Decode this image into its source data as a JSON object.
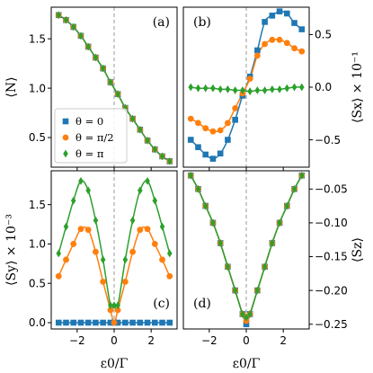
{
  "colors": {
    "blue": "#1f77b4",
    "orange": "#ff7f0e",
    "green": "#2ca02c",
    "zero_line": "#999999"
  },
  "legend": [
    {
      "label": "θ = 0",
      "color": "#1f77b4",
      "marker": "square"
    },
    {
      "label": "θ = π/2",
      "color": "#ff7f0e",
      "marker": "circle"
    },
    {
      "label": "θ = π",
      "color": "#2ca02c",
      "marker": "diamond"
    }
  ],
  "chart_data": [
    {
      "panel": "(a)",
      "type": "line",
      "ylabel": "⟨N⟩",
      "xlabel": "",
      "xlim": [
        -3.4,
        3.4
      ],
      "ylim": [
        0.2,
        1.82
      ],
      "yticks": [
        0.5,
        1.0,
        1.5
      ],
      "ytick_labels": [
        "0.5",
        "1.0",
        "1.5"
      ],
      "y_side": "left",
      "xticks": [
        -2,
        0,
        2
      ],
      "xtick_labels": [],
      "x": [
        -3.0,
        -2.6,
        -2.2,
        -1.8,
        -1.4,
        -1.0,
        -0.6,
        -0.2,
        0.2,
        0.6,
        1.0,
        1.4,
        1.8,
        2.2,
        2.6,
        3.0
      ],
      "series": [
        {
          "name": "θ = 0",
          "color": "#1f77b4",
          "marker": "square",
          "values": [
            1.74,
            1.69,
            1.62,
            1.53,
            1.42,
            1.31,
            1.2,
            1.06,
            0.94,
            0.8,
            0.69,
            0.58,
            0.47,
            0.38,
            0.31,
            0.26
          ]
        },
        {
          "name": "θ = π/2",
          "color": "#ff7f0e",
          "marker": "circle",
          "values": [
            1.74,
            1.69,
            1.62,
            1.53,
            1.42,
            1.31,
            1.2,
            1.06,
            0.94,
            0.8,
            0.69,
            0.58,
            0.47,
            0.38,
            0.31,
            0.26
          ]
        },
        {
          "name": "θ = π",
          "color": "#2ca02c",
          "marker": "diamond",
          "values": [
            1.74,
            1.69,
            1.62,
            1.53,
            1.42,
            1.31,
            1.2,
            1.06,
            0.94,
            0.8,
            0.69,
            0.58,
            0.47,
            0.38,
            0.31,
            0.26
          ]
        }
      ]
    },
    {
      "panel": "(b)",
      "type": "line",
      "ylabel": "⟨Sx⟩ × 10⁻¹",
      "xlabel": "",
      "xlim": [
        -3.4,
        3.4
      ],
      "ylim": [
        -0.76,
        0.76
      ],
      "yticks": [
        -0.5,
        0.0,
        0.5
      ],
      "ytick_labels": [
        "−0.5",
        "0.0",
        "0.5"
      ],
      "y_side": "right",
      "xticks": [
        -2,
        0,
        2
      ],
      "xtick_labels": [],
      "x": [
        -3.0,
        -2.6,
        -2.2,
        -1.8,
        -1.4,
        -1.0,
        -0.6,
        -0.2,
        0.2,
        0.6,
        1.0,
        1.4,
        1.8,
        2.2,
        2.6,
        3.0
      ],
      "series": [
        {
          "name": "θ = 0",
          "color": "#1f77b4",
          "marker": "square",
          "values": [
            -0.5,
            -0.57,
            -0.64,
            -0.68,
            -0.63,
            -0.5,
            -0.31,
            -0.08,
            0.1,
            0.35,
            0.62,
            0.68,
            0.72,
            0.7,
            0.61,
            0.55
          ]
        },
        {
          "name": "θ = π/2",
          "color": "#ff7f0e",
          "marker": "circle",
          "values": [
            -0.3,
            -0.34,
            -0.39,
            -0.42,
            -0.41,
            -0.34,
            -0.2,
            -0.06,
            0.08,
            0.3,
            0.41,
            0.45,
            0.45,
            0.42,
            0.37,
            0.34
          ]
        },
        {
          "name": "θ = π",
          "color": "#2ca02c",
          "marker": "diamond",
          "values": [
            0.0,
            -0.01,
            -0.01,
            -0.01,
            -0.02,
            -0.02,
            -0.03,
            -0.03,
            -0.04,
            -0.03,
            -0.03,
            -0.02,
            -0.02,
            -0.01,
            0.0,
            0.0
          ]
        }
      ]
    },
    {
      "panel": "(c)",
      "type": "line",
      "ylabel": "⟨Sy⟩ × 10⁻³",
      "xlabel": "ε0/Γ",
      "xlim": [
        -3.4,
        3.4
      ],
      "ylim": [
        -0.08,
        1.93
      ],
      "yticks": [
        0.0,
        0.5,
        1.0,
        1.5
      ],
      "ytick_labels": [
        "0.0",
        "0.5",
        "1.0",
        "1.5"
      ],
      "y_side": "left",
      "xticks": [
        -2,
        0,
        2
      ],
      "xtick_labels": [
        "−2",
        "0",
        "2"
      ],
      "x": [
        -3.0,
        -2.6,
        -2.2,
        -1.8,
        -1.4,
        -1.0,
        -0.6,
        -0.2,
        0.0,
        0.2,
        0.6,
        1.0,
        1.4,
        1.8,
        2.2,
        2.6,
        3.0
      ],
      "series": [
        {
          "name": "θ = 0",
          "color": "#1f77b4",
          "marker": "square",
          "values": [
            0,
            0,
            0,
            0,
            0,
            0,
            0,
            0,
            0,
            0,
            0,
            0,
            0,
            0,
            0,
            0,
            0
          ]
        },
        {
          "name": "θ = π/2",
          "color": "#ff7f0e",
          "marker": "circle",
          "values": [
            0.59,
            0.8,
            1.0,
            1.19,
            1.18,
            0.9,
            0.52,
            0.16,
            0.0,
            0.16,
            0.52,
            0.9,
            1.18,
            1.19,
            1.0,
            0.8,
            0.59
          ]
        },
        {
          "name": "θ = π",
          "color": "#2ca02c",
          "marker": "diamond",
          "values": [
            0.88,
            1.22,
            1.55,
            1.8,
            1.68,
            1.3,
            0.8,
            0.22,
            0.22,
            0.22,
            0.8,
            1.3,
            1.68,
            1.8,
            1.55,
            1.22,
            0.88
          ]
        }
      ]
    },
    {
      "panel": "(d)",
      "type": "line",
      "ylabel": "⟨Sz⟩",
      "xlabel": "ε0/Γ",
      "xlim": [
        -3.4,
        3.4
      ],
      "ylim": [
        -0.257,
        -0.023
      ],
      "yticks": [
        -0.25,
        -0.2,
        -0.15,
        -0.1,
        -0.05
      ],
      "ytick_labels": [
        "−0.25",
        "−0.20",
        "−0.15",
        "−0.10",
        "−0.05"
      ],
      "y_side": "right",
      "xticks": [
        -2,
        0,
        2
      ],
      "xtick_labels": [
        "−2",
        "0",
        "2"
      ],
      "x": [
        -3.0,
        -2.6,
        -2.2,
        -1.8,
        -1.4,
        -1.0,
        -0.6,
        -0.2,
        0.0,
        0.2,
        0.6,
        1.0,
        1.4,
        1.8,
        2.2,
        2.6,
        3.0
      ],
      "series": [
        {
          "name": "θ = 0",
          "color": "#1f77b4",
          "marker": "square",
          "values": [
            -0.03,
            -0.05,
            -0.075,
            -0.1,
            -0.13,
            -0.165,
            -0.2,
            -0.235,
            -0.25,
            -0.235,
            -0.2,
            -0.165,
            -0.13,
            -0.1,
            -0.075,
            -0.05,
            -0.03
          ]
        },
        {
          "name": "θ = π/2",
          "color": "#ff7f0e",
          "marker": "circle",
          "values": [
            -0.03,
            -0.05,
            -0.075,
            -0.1,
            -0.13,
            -0.165,
            -0.2,
            -0.235,
            -0.245,
            -0.235,
            -0.2,
            -0.165,
            -0.13,
            -0.1,
            -0.075,
            -0.05,
            -0.03
          ]
        },
        {
          "name": "θ = π",
          "color": "#2ca02c",
          "marker": "diamond",
          "values": [
            -0.03,
            -0.05,
            -0.075,
            -0.1,
            -0.13,
            -0.165,
            -0.2,
            -0.235,
            -0.24,
            -0.235,
            -0.2,
            -0.165,
            -0.13,
            -0.1,
            -0.075,
            -0.05,
            -0.03
          ]
        }
      ]
    }
  ]
}
